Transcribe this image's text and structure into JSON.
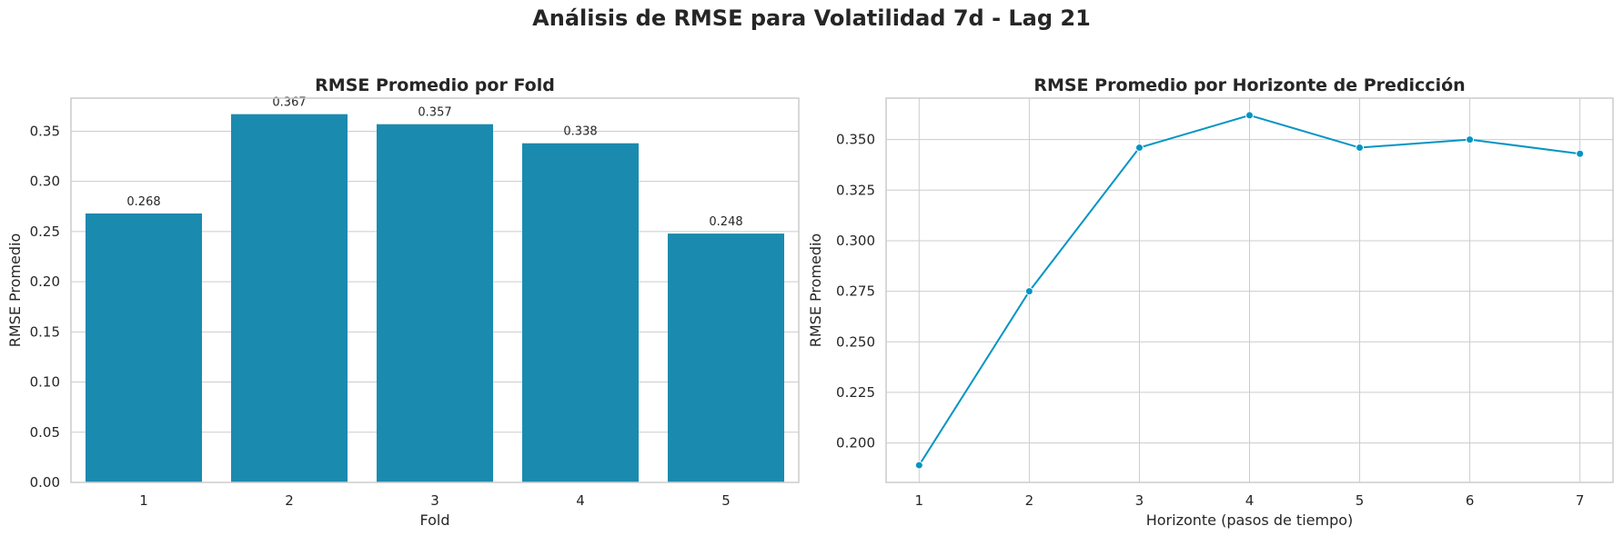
{
  "suptitle": "Análisis de RMSE para Volatilidad 7d - Lag 21",
  "colors": {
    "bar": "#1b8aaf",
    "line": "#0494c4",
    "grid": "#cccccc",
    "spine": "#cccccc"
  },
  "chart_data": [
    {
      "type": "bar",
      "title": "RMSE Promedio por Fold",
      "xlabel": "Fold",
      "ylabel": "RMSE Promedio",
      "categories": [
        "1",
        "2",
        "3",
        "4",
        "5"
      ],
      "values": [
        0.268,
        0.367,
        0.357,
        0.338,
        0.248
      ],
      "value_labels": [
        "0.268",
        "0.367",
        "0.357",
        "0.338",
        "0.248"
      ],
      "ylim": [
        0,
        0.383
      ],
      "yticks": [
        0.0,
        0.05,
        0.1,
        0.15,
        0.2,
        0.25,
        0.3,
        0.35
      ],
      "ytick_labels": [
        "0.00",
        "0.05",
        "0.10",
        "0.15",
        "0.20",
        "0.25",
        "0.30",
        "0.35"
      ],
      "grid": true
    },
    {
      "type": "line",
      "title": "RMSE Promedio por Horizonte de Predicción",
      "xlabel": "Horizonte (pasos de tiempo)",
      "ylabel": "RMSE Promedio",
      "x": [
        1,
        2,
        3,
        4,
        5,
        6,
        7
      ],
      "xtick_labels": [
        "1",
        "2",
        "3",
        "4",
        "5",
        "6",
        "7"
      ],
      "y": [
        0.189,
        0.275,
        0.346,
        0.362,
        0.346,
        0.35,
        0.343
      ],
      "xlim": [
        0.7,
        7.3
      ],
      "ylim": [
        0.1805,
        0.3705
      ],
      "yticks": [
        0.2,
        0.225,
        0.25,
        0.275,
        0.3,
        0.325,
        0.35
      ],
      "ytick_labels": [
        "0.200",
        "0.225",
        "0.250",
        "0.275",
        "0.300",
        "0.325",
        "0.350"
      ],
      "marker": "circle",
      "grid": true
    }
  ]
}
